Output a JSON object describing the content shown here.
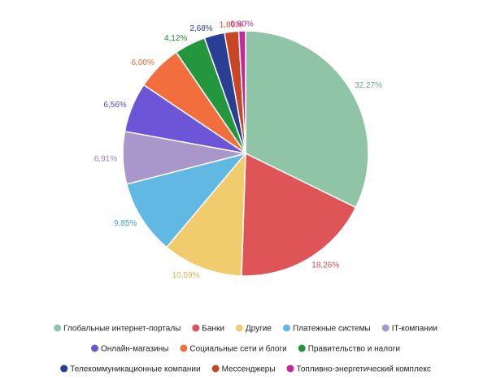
{
  "chart_data": {
    "type": "pie",
    "title": "",
    "start_angle_deg": 0,
    "direction": "clockwise",
    "slices": [
      {
        "label": "Глобальные интернет-порталы",
        "value": 32.27,
        "text": "32,27%",
        "color": "#8fc4a6",
        "label_color": "#6aa885"
      },
      {
        "label": "Банки",
        "value": 18.26,
        "text": "18,26%",
        "color": "#de5457",
        "label_color": "#d14a4d"
      },
      {
        "label": "Другие",
        "value": 10.59,
        "text": "10,59%",
        "color": "#f0cc6c",
        "label_color": "#e3b64a"
      },
      {
        "label": "Платежные системы",
        "value": 9.85,
        "text": "9,85%",
        "color": "#61b8e3",
        "label_color": "#42a3d6"
      },
      {
        "label": "IT-компании",
        "value": 6.91,
        "text": "6,91%",
        "color": "#a996cb",
        "label_color": "#9582bd"
      },
      {
        "label": "Онлайн-магазины",
        "value": 6.56,
        "text": "6,56%",
        "color": "#6c55d6",
        "label_color": "#5a44c8"
      },
      {
        "label": "Социальные сети и блоги",
        "value": 6.0,
        "text": "6,00%",
        "color": "#f26f3d",
        "label_color": "#e8692f"
      },
      {
        "label": "Правительство и налоги",
        "value": 4.12,
        "text": "4,12%",
        "color": "#24963d",
        "label_color": "#1d8a35"
      },
      {
        "label": "Телекоммуникационные компании",
        "value": 2.68,
        "text": "2,68%",
        "color": "#2a3e94",
        "label_color": "#2a3e94"
      },
      {
        "label": "Мессенджеры",
        "value": 1.86,
        "text": "1,86%",
        "color": "#c94622",
        "label_color": "#c94622"
      },
      {
        "label": "Топливно-энергетический комплекс",
        "value": 0.9,
        "text": "0,90%",
        "color": "#c22a9a",
        "label_color": "#c22a9a"
      }
    ],
    "legend": {
      "placement": "bottom",
      "rows": [
        [
          0,
          1,
          2,
          3,
          4
        ],
        [
          5,
          6,
          7
        ],
        [
          8,
          9,
          10
        ]
      ]
    }
  }
}
